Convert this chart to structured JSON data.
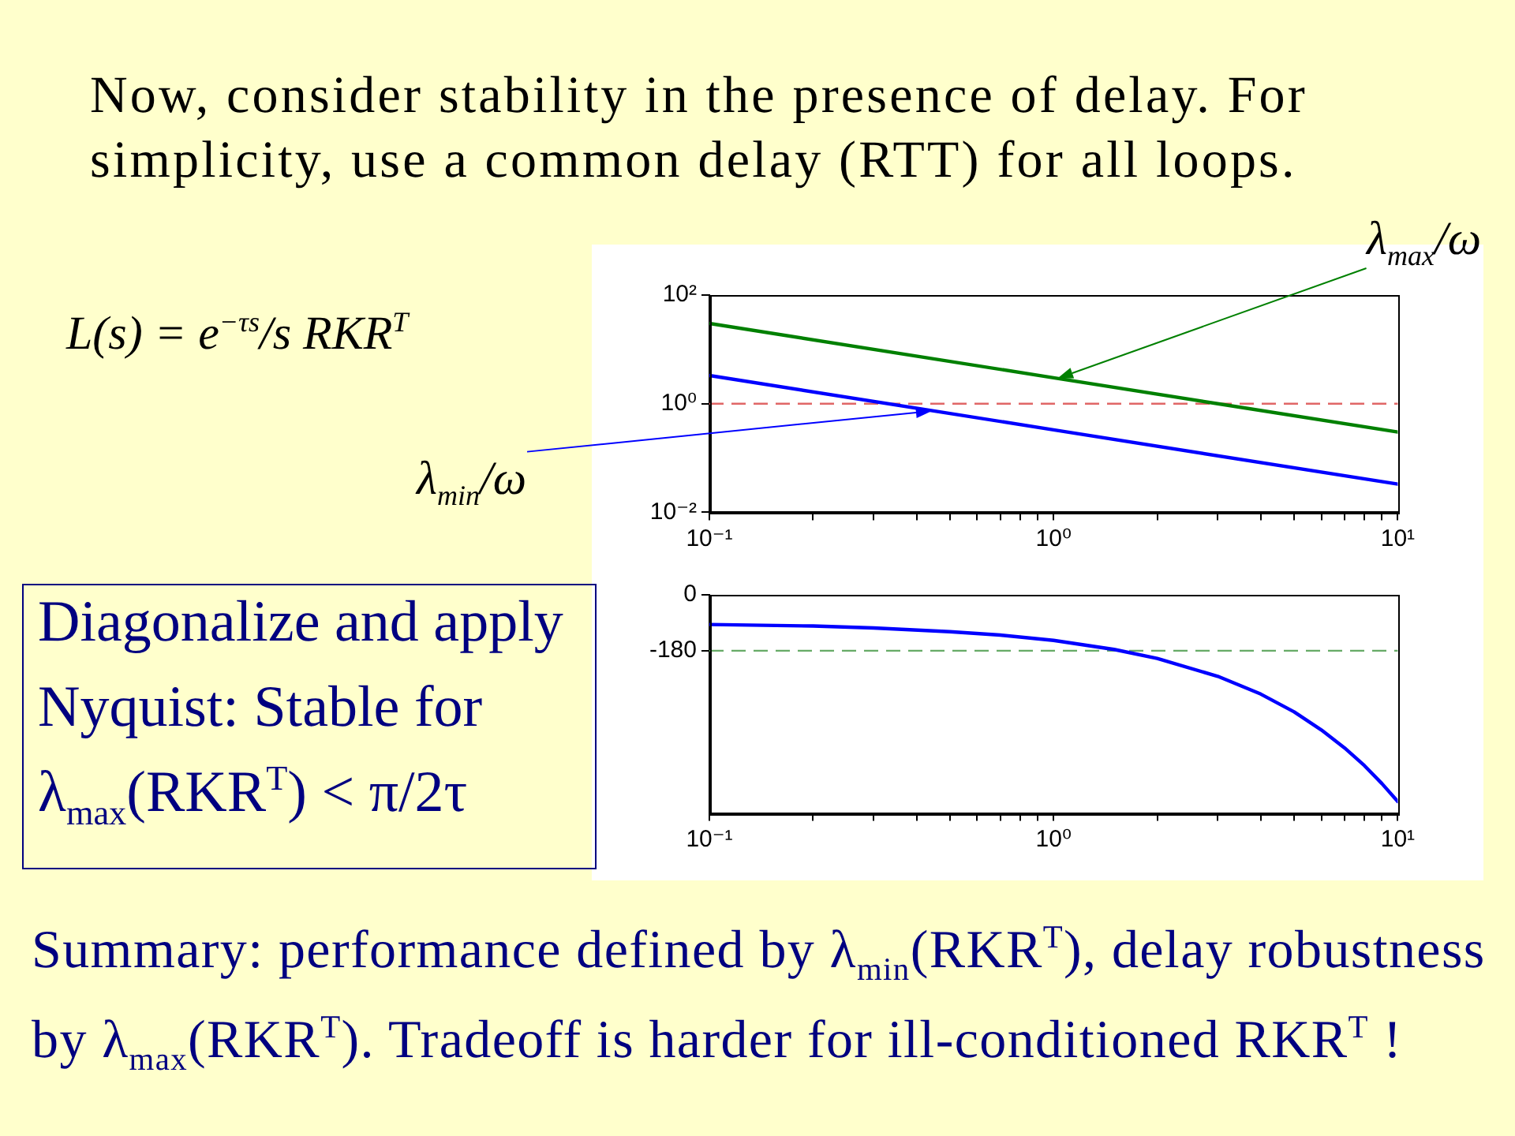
{
  "chart_data": [
    {
      "type": "line",
      "title": "Now, consider stability in the presence of delay. For simplicity, use a common delay (RTT) for all loops.",
      "log": "xy",
      "x": [
        0.1,
        1,
        10
      ],
      "xlim": [
        0.1,
        10
      ],
      "ylim": [
        0.01,
        100
      ],
      "xticks": [
        {
          "value": 0.1,
          "label": "10⁻¹"
        },
        {
          "value": 0.2,
          "label": null
        },
        {
          "value": 0.3,
          "label": null
        },
        {
          "value": 0.4,
          "label": null
        },
        {
          "value": 0.5,
          "label": null
        },
        {
          "value": 0.6,
          "label": null
        },
        {
          "value": 0.7,
          "label": null
        },
        {
          "value": 0.8,
          "label": null
        },
        {
          "value": 0.9,
          "label": null
        },
        {
          "value": 1,
          "label": "10⁰"
        },
        {
          "value": 2,
          "label": null
        },
        {
          "value": 3,
          "label": null
        },
        {
          "value": 4,
          "label": null
        },
        {
          "value": 5,
          "label": null
        },
        {
          "value": 6,
          "label": null
        },
        {
          "value": 7,
          "label": null
        },
        {
          "value": 8,
          "label": null
        },
        {
          "value": 9,
          "label": null
        },
        {
          "value": 10,
          "label": "10¹"
        }
      ],
      "yticks": [
        {
          "value": 0.01,
          "label": "10⁻²"
        },
        {
          "value": 1,
          "label": "10⁰"
        },
        {
          "value": 100,
          "label": "10²"
        }
      ],
      "series": [
        {
          "color": "#008000",
          "values": [
            30,
            3,
            0.3
          ]
        },
        {
          "color": "#0000ff",
          "values": [
            3.3,
            0.33,
            0.033
          ]
        }
      ],
      "ref_lines": [
        {
          "axis": "y",
          "value": 1,
          "color": "#e06666",
          "line_style": "dashed"
        }
      ],
      "annotations": [
        "λ$_{max}$/ω",
        "λ$_{min}$/ω",
        "L(s) = e$^{−τs}$/s RKR$^{T}$",
        "Diagonalize and apply Nyquist: Stable for λ$_{max}$(RKR$^{T}$) < π/2τ",
        "Summary: performance defined by λ$_{min}$(RKR$^{T}$), delay robustness by λ$_{max}$(RKR$^{T}$). Tradeoff is harder for ill-conditioned RKR$^{T}$ !"
      ]
    },
    {
      "type": "line",
      "log": "x",
      "x": [
        0.1,
        0.2,
        0.3,
        0.5,
        0.7,
        1,
        1.5,
        2,
        3,
        4,
        5,
        6,
        7,
        8,
        9,
        10
      ],
      "xlim": [
        0.1,
        10
      ],
      "ylim": [
        -700,
        0
      ],
      "xticks": [
        {
          "value": 0.1,
          "label": "10⁻¹"
        },
        {
          "value": 0.2,
          "label": null
        },
        {
          "value": 0.3,
          "label": null
        },
        {
          "value": 0.4,
          "label": null
        },
        {
          "value": 0.5,
          "label": null
        },
        {
          "value": 0.6,
          "label": null
        },
        {
          "value": 0.7,
          "label": null
        },
        {
          "value": 0.8,
          "label": null
        },
        {
          "value": 0.9,
          "label": null
        },
        {
          "value": 1,
          "label": "10⁰"
        },
        {
          "value": 2,
          "label": null
        },
        {
          "value": 3,
          "label": null
        },
        {
          "value": 4,
          "label": null
        },
        {
          "value": 5,
          "label": null
        },
        {
          "value": 6,
          "label": null
        },
        {
          "value": 7,
          "label": null
        },
        {
          "value": 8,
          "label": null
        },
        {
          "value": 9,
          "label": null
        },
        {
          "value": 10,
          "label": "10¹"
        }
      ],
      "yticks": [
        0,
        -180
      ],
      "series": [
        {
          "color": "#0000ff",
          "values": [
            -96,
            -101,
            -107,
            -119,
            -130,
            -147,
            -176,
            -205,
            -262,
            -319,
            -376,
            -434,
            -491,
            -548,
            -606,
            -663
          ]
        }
      ],
      "ref_lines": [
        {
          "axis": "y",
          "value": -180,
          "color": "#66aa66",
          "line_style": "dashed"
        }
      ]
    }
  ]
}
